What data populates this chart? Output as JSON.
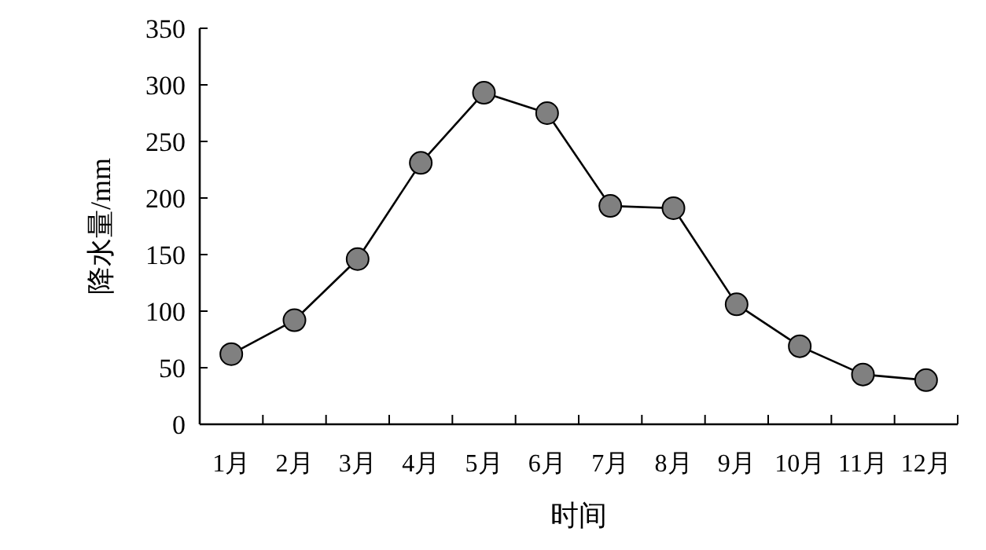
{
  "chart_data": {
    "type": "line",
    "xlabel": "时间",
    "ylabel": "降水量/mm",
    "categories": [
      "1月",
      "2月",
      "3月",
      "4月",
      "5月",
      "6月",
      "7月",
      "8月",
      "9月",
      "10月",
      "11月",
      "12月"
    ],
    "series": [
      {
        "color": "#808080",
        "values": [
          62,
          92,
          146,
          231,
          293,
          275,
          193,
          191,
          106,
          69,
          44,
          39
        ]
      }
    ],
    "ylim": [
      0,
      350
    ],
    "yticks": [
      0,
      50,
      100,
      150,
      200,
      250,
      300,
      350
    ],
    "marker": "circle",
    "line_style": "solid"
  }
}
